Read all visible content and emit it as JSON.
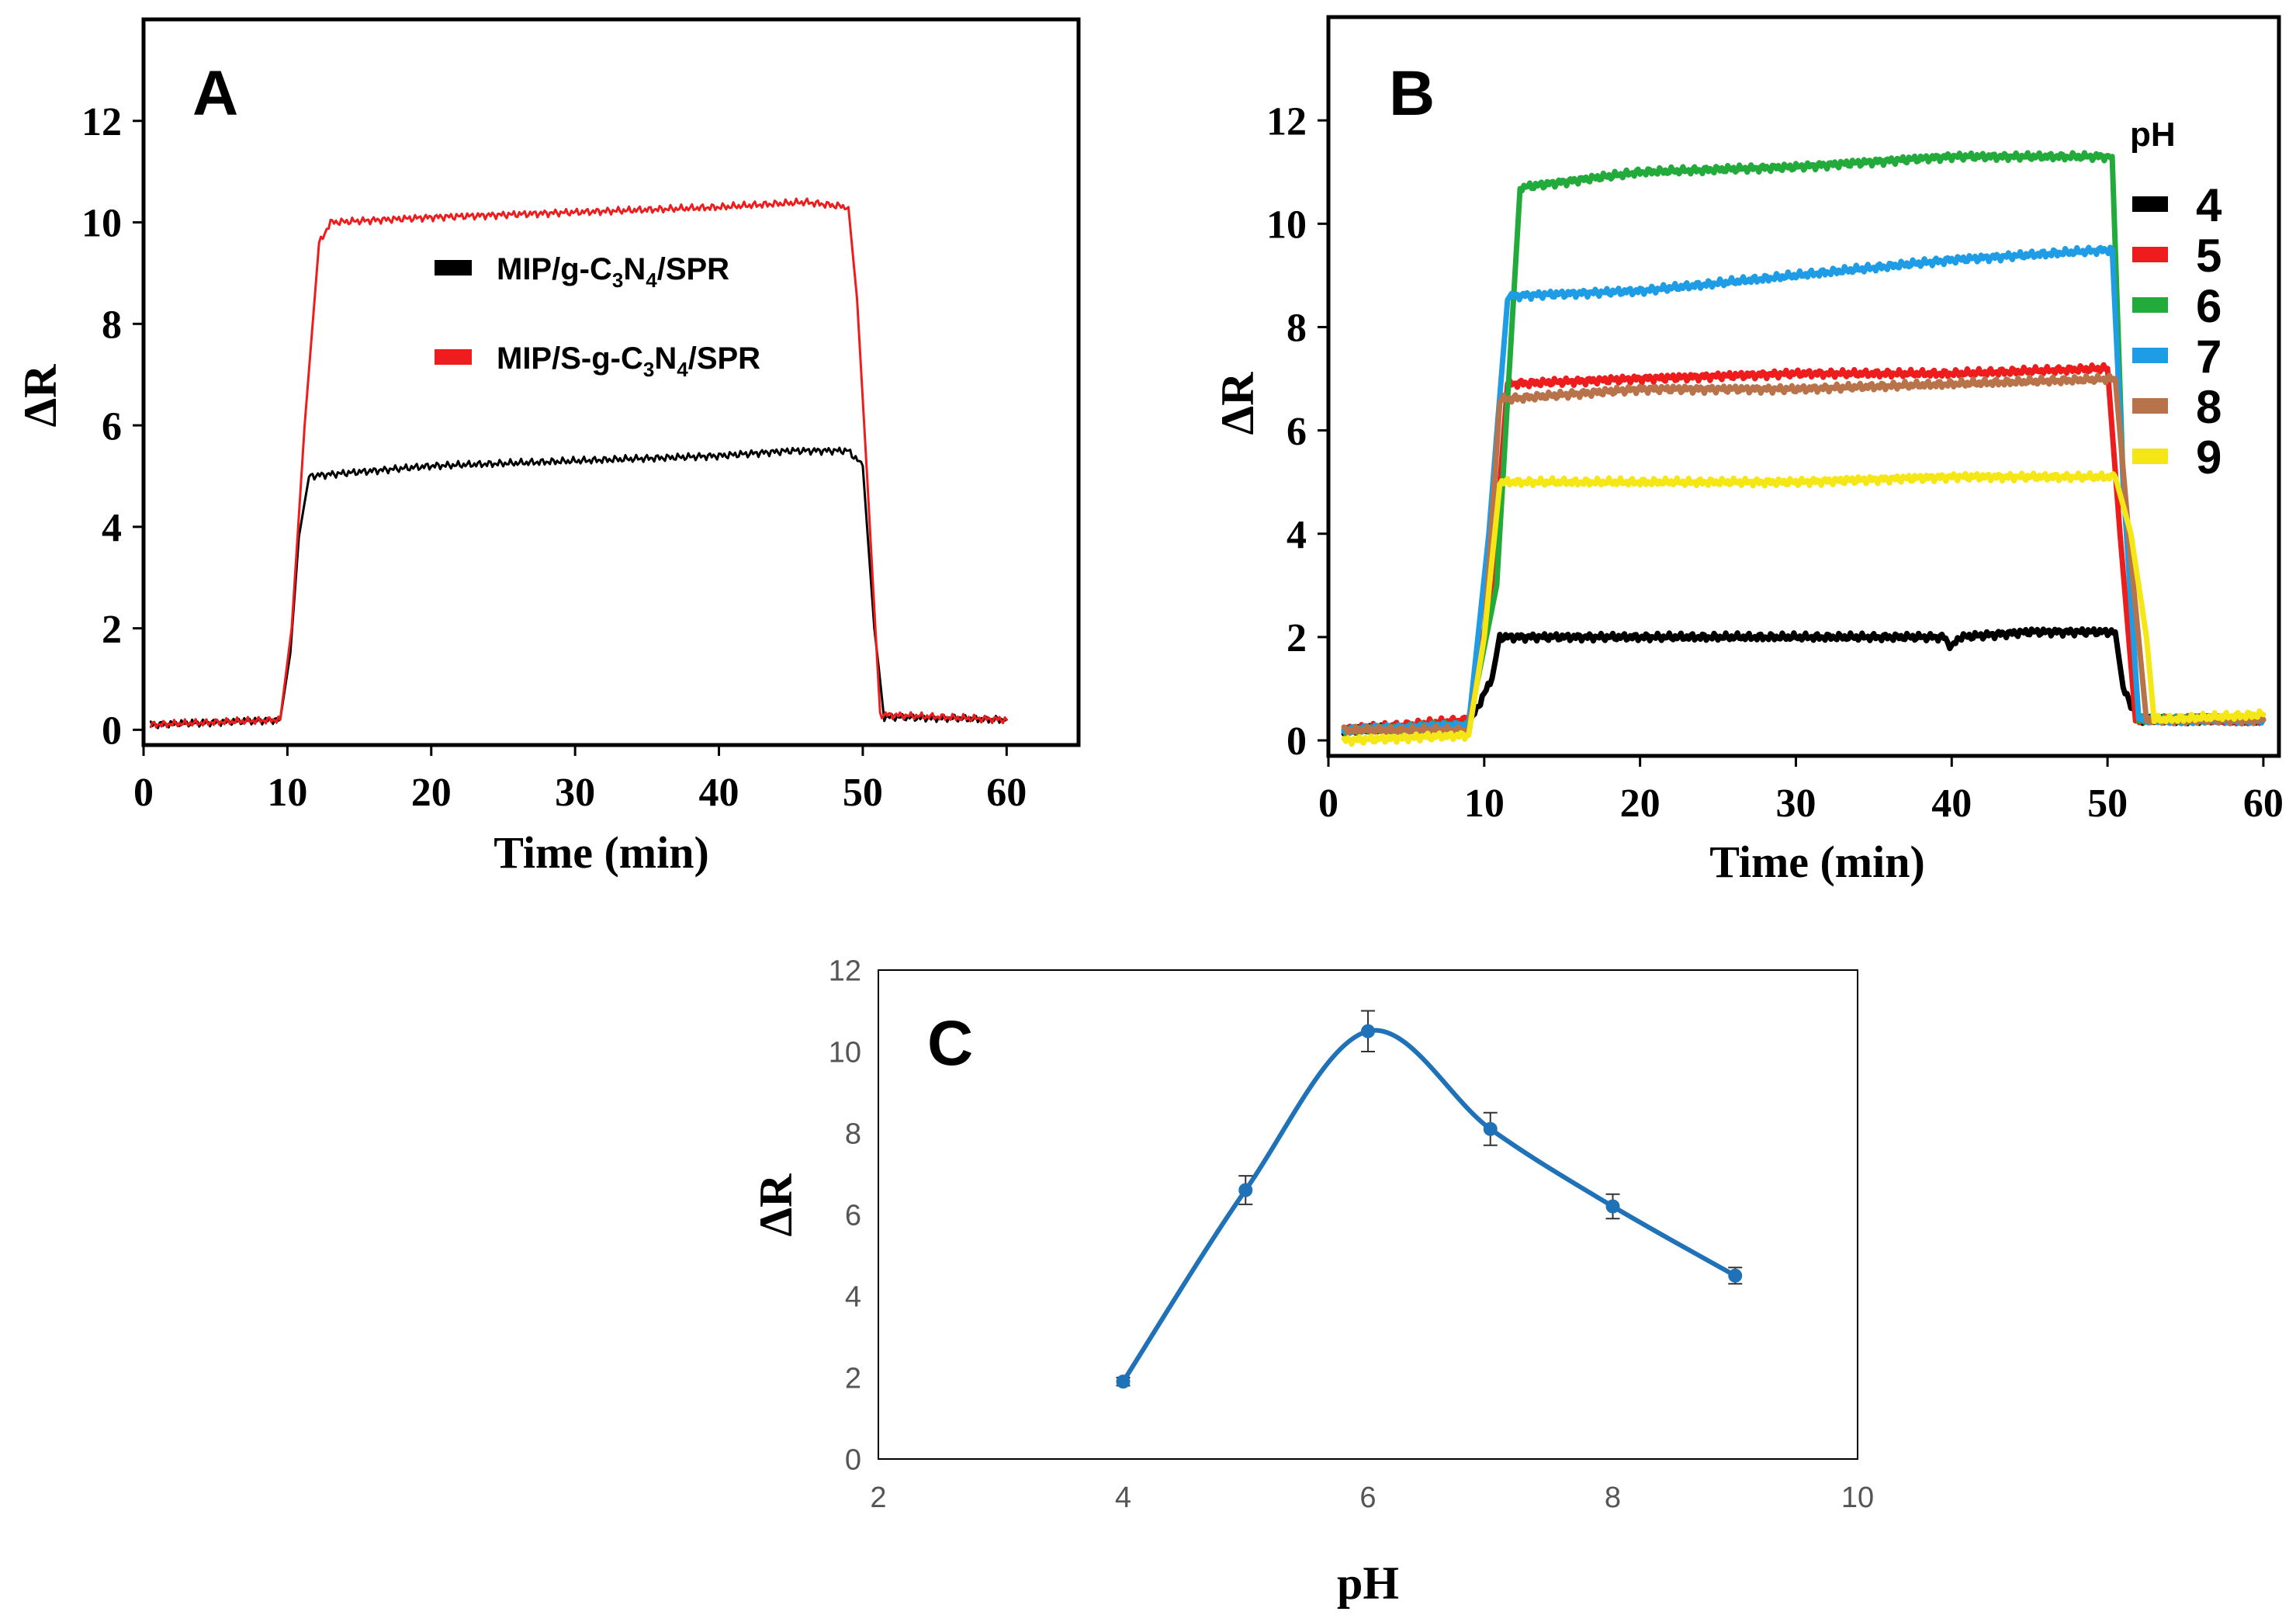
{
  "chart_data": [
    {
      "panel": "A",
      "type": "line",
      "title": "",
      "xlabel": "Time (min)",
      "ylabel": "ΔR",
      "xlim": [
        0,
        65
      ],
      "ylim": [
        -0.3,
        14
      ],
      "xticks": [
        "0",
        "10",
        "20",
        "30",
        "40",
        "50",
        "60"
      ],
      "yticks": [
        "0",
        "2",
        "4",
        "6",
        "8",
        "10",
        "12"
      ],
      "legend": [
        "MIP/g-C3N4/SPR",
        "MIP/S-g-C3N4/SPR"
      ],
      "legend_position": "center",
      "series": [
        {
          "name": "MIP/g-C3N4/SPR",
          "color": "#000000",
          "x": [
            0.5,
            9.5,
            10.2,
            10.8,
            11.5,
            20,
            30,
            40,
            45,
            49,
            50,
            50.8,
            51.5,
            60
          ],
          "y": [
            0.1,
            0.2,
            1.5,
            3.8,
            5.0,
            5.2,
            5.3,
            5.4,
            5.5,
            5.5,
            5.2,
            2.0,
            0.25,
            0.2
          ]
        },
        {
          "name": "MIP/S-g-C3N4/SPR",
          "color": "#ee1c1c",
          "x": [
            0.5,
            9.5,
            10.3,
            11.2,
            12.2,
            13.0,
            20,
            30,
            40,
            46,
            49,
            49.6,
            50.3,
            51.2,
            60
          ],
          "y": [
            0.1,
            0.2,
            2.0,
            6.0,
            9.6,
            10.0,
            10.1,
            10.2,
            10.3,
            10.4,
            10.3,
            8.5,
            5.0,
            0.3,
            0.2
          ]
        }
      ]
    },
    {
      "panel": "B",
      "type": "line",
      "title": "",
      "xlabel": "Time (min)",
      "ylabel": "ΔR",
      "xlim": [
        0,
        61
      ],
      "ylim": [
        -0.3,
        14
      ],
      "xticks": [
        "0",
        "10",
        "20",
        "30",
        "40",
        "50",
        "60"
      ],
      "yticks": [
        "0",
        "2",
        "4",
        "6",
        "8",
        "10",
        "12"
      ],
      "legend_title": "pH",
      "legend": [
        "4",
        "5",
        "6",
        "7",
        "8",
        "9"
      ],
      "legend_position": "right",
      "series": [
        {
          "name": "4",
          "color": "#000000",
          "x": [
            1,
            9,
            10.5,
            11,
            20,
            30,
            39.5,
            40,
            40.5,
            45,
            50.5,
            51,
            52,
            60
          ],
          "y": [
            0.2,
            0.3,
            1.2,
            2.0,
            2.0,
            2.0,
            2.0,
            1.8,
            2.0,
            2.1,
            2.1,
            1.0,
            0.4,
            0.4
          ]
        },
        {
          "name": "5",
          "color": "#ee1c1c",
          "x": [
            1,
            9,
            10.5,
            11.5,
            20,
            30,
            40,
            50,
            50.8,
            51.8,
            60
          ],
          "y": [
            0.2,
            0.4,
            3.0,
            6.9,
            7.0,
            7.1,
            7.1,
            7.2,
            4.0,
            0.4,
            0.4
          ]
        },
        {
          "name": "6",
          "color": "#22aa3a",
          "x": [
            1,
            9,
            10.8,
            12.3,
            20,
            30,
            40,
            47,
            50.3,
            51,
            52,
            60
          ],
          "y": [
            0.2,
            0.3,
            3.0,
            10.7,
            11.0,
            11.1,
            11.3,
            11.3,
            11.3,
            5.0,
            0.4,
            0.4
          ]
        },
        {
          "name": "7",
          "color": "#1e9de6",
          "x": [
            1,
            9,
            10.3,
            11.5,
            20,
            30,
            40,
            50.3,
            51,
            52,
            60
          ],
          "y": [
            0.2,
            0.3,
            4.0,
            8.6,
            8.7,
            9.0,
            9.3,
            9.5,
            5.0,
            0.4,
            0.4
          ]
        },
        {
          "name": "8",
          "color": "#b8734a",
          "x": [
            1,
            9,
            10,
            11,
            20,
            30,
            40,
            50.5,
            51.5,
            52.5,
            60
          ],
          "y": [
            0.2,
            0.2,
            2.0,
            6.6,
            6.8,
            6.8,
            6.9,
            7.0,
            3.5,
            0.4,
            0.4
          ]
        },
        {
          "name": "9",
          "color": "#f5e616",
          "x": [
            1,
            9,
            10,
            11,
            20,
            30,
            40,
            50.5,
            51.5,
            52.5,
            53,
            60
          ],
          "y": [
            0.0,
            0.1,
            2.0,
            5.0,
            5.0,
            5.0,
            5.1,
            5.1,
            4.0,
            2.0,
            0.4,
            0.5
          ]
        }
      ]
    },
    {
      "panel": "C",
      "type": "line",
      "title": "",
      "xlabel": "pH",
      "ylabel": "ΔR",
      "xlim": [
        2,
        10
      ],
      "ylim": [
        0,
        12
      ],
      "xticks": [
        "2",
        "4",
        "6",
        "8",
        "10"
      ],
      "yticks": [
        "0",
        "2",
        "4",
        "6",
        "8",
        "10",
        "12"
      ],
      "series": [
        {
          "name": "ΔR",
          "color": "#1f72b8",
          "x": [
            4,
            5,
            6,
            7,
            8,
            9
          ],
          "y": [
            1.9,
            6.6,
            10.5,
            8.1,
            6.2,
            4.5
          ],
          "error": [
            0.1,
            0.35,
            0.5,
            0.4,
            0.3,
            0.2
          ]
        }
      ]
    }
  ]
}
